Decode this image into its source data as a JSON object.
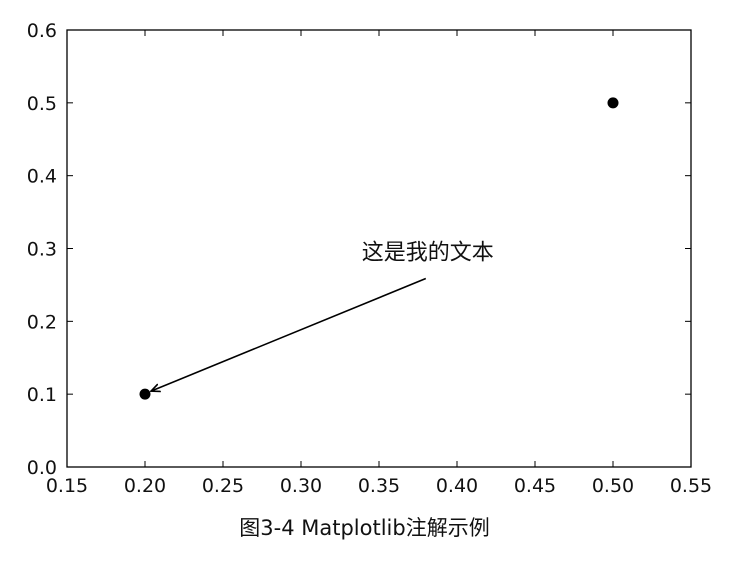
{
  "chart_data": {
    "type": "scatter",
    "points": [
      {
        "x": 0.2,
        "y": 0.1
      },
      {
        "x": 0.5,
        "y": 0.5
      }
    ],
    "xlim": [
      0.15,
      0.55
    ],
    "ylim": [
      0.0,
      0.6
    ],
    "xticks": [
      "0.15",
      "0.20",
      "0.25",
      "0.30",
      "0.35",
      "0.40",
      "0.45",
      "0.50",
      "0.55"
    ],
    "yticks": [
      "0.0",
      "0.1",
      "0.2",
      "0.3",
      "0.4",
      "0.5",
      "0.6"
    ],
    "grid": false,
    "marker_color": "#000000",
    "annotation": {
      "text": "这是我的文本",
      "xy": [
        0.2,
        0.1
      ],
      "arrow_tail": [
        0.38,
        0.3
      ]
    }
  },
  "caption": "图3-4 Matplotlib注解示例"
}
